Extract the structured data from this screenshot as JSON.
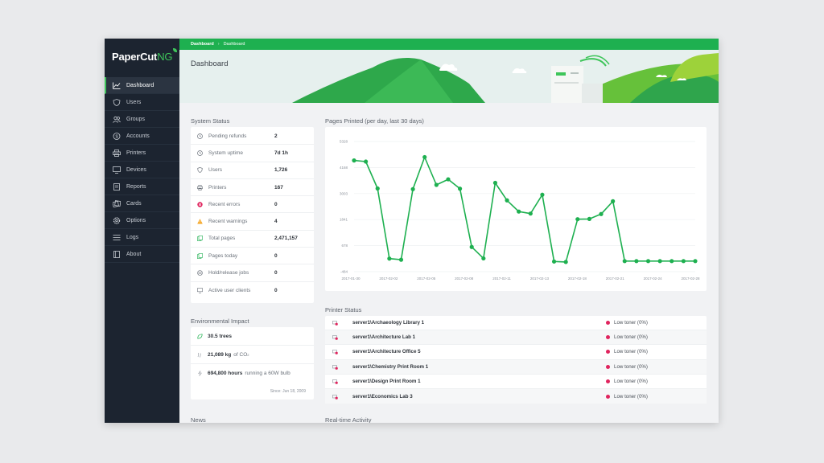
{
  "app": {
    "logo_text": "PaperCut",
    "logo_suffix": "NG"
  },
  "breadcrumb": {
    "first": "Dashboard",
    "second": "Dashboard"
  },
  "header": {
    "title": "Dashboard"
  },
  "sidebar": {
    "items": [
      {
        "label": "Dashboard",
        "icon": "chart-line-icon",
        "active": true
      },
      {
        "label": "Users",
        "icon": "shield-icon"
      },
      {
        "label": "Groups",
        "icon": "users-icon"
      },
      {
        "label": "Accounts",
        "icon": "dollar-icon"
      },
      {
        "label": "Printers",
        "icon": "printer-icon"
      },
      {
        "label": "Devices",
        "icon": "device-icon"
      },
      {
        "label": "Reports",
        "icon": "reports-icon"
      },
      {
        "label": "Cards",
        "icon": "cards-icon"
      },
      {
        "label": "Options",
        "icon": "gear-icon"
      },
      {
        "label": "Logs",
        "icon": "logs-icon"
      },
      {
        "label": "About",
        "icon": "book-icon"
      }
    ]
  },
  "system_status": {
    "title": "System Status",
    "rows": [
      {
        "label": "Pending refunds",
        "value": "2",
        "icon": "clock-icon"
      },
      {
        "label": "System uptime",
        "value": "7d 1h",
        "icon": "clock-icon"
      },
      {
        "label": "Users",
        "value": "1,726",
        "icon": "shield-icon"
      },
      {
        "label": "Printers",
        "value": "167",
        "icon": "printer-icon"
      },
      {
        "label": "Recent errors",
        "value": "0",
        "icon": "error-icon"
      },
      {
        "label": "Recent warnings",
        "value": "4",
        "icon": "warning-icon"
      },
      {
        "label": "Total pages",
        "value": "2,471,157",
        "icon": "pages-icon"
      },
      {
        "label": "Pages today",
        "value": "0",
        "icon": "pages-icon"
      },
      {
        "label": "Hold/release jobs",
        "value": "0",
        "icon": "hold-icon"
      },
      {
        "label": "Active user clients",
        "value": "0",
        "icon": "client-icon"
      }
    ]
  },
  "environment": {
    "title": "Environmental Impact",
    "trees": "30.5 trees",
    "co2_value": "21,089 kg",
    "co2_unit": "of CO",
    "co2_sub": "2",
    "hours_value": "694,800 hours",
    "hours_text": "running a 60W bulb",
    "since": "Since: Jun 18, 2009"
  },
  "news": {
    "title": "News"
  },
  "realtime": {
    "title": "Real-time Activity"
  },
  "printer_status": {
    "title": "Printer Status",
    "rows": [
      {
        "name": "server1\\Archaeology Library 1",
        "status": "Low toner (0%)"
      },
      {
        "name": "server1\\Architecture Lab 1",
        "status": "Low toner (0%)"
      },
      {
        "name": "server1\\Architecture Office 5",
        "status": "Low toner (0%)"
      },
      {
        "name": "server1\\Chemistry Print Room 1",
        "status": "Low toner (0%)"
      },
      {
        "name": "server1\\Design Print Room 1",
        "status": "Low toner (0%)"
      },
      {
        "name": "server1\\Economics Lab 3",
        "status": "Low toner (0%)"
      }
    ]
  },
  "colors": {
    "accent": "#1eb050",
    "sidebar": "#1c2430",
    "error": "#e0245e",
    "warning": "#f5a623"
  },
  "chart_data": {
    "type": "line",
    "title": "Pages Printed (per day, last 30 days)",
    "yticks": [
      "5328",
      "4168",
      "3003",
      "1841",
      "678",
      "-484"
    ],
    "ylim": [
      -484,
      5328
    ],
    "xticks": [
      "2017-01-30",
      "2017-02-02",
      "2017-02-05",
      "2017-02-08",
      "2017-02-11",
      "2017-02-13",
      "2017-02-18",
      "2017-02-21",
      "2017-02-24",
      "2017-02-28"
    ],
    "series": [
      {
        "values": [
          4480,
          4430,
          3230,
          100,
          50,
          3200,
          4630,
          3390,
          3640,
          3220,
          620,
          110,
          3480,
          2700,
          2200,
          2110,
          2950,
          -30,
          -50,
          1860,
          1870,
          2090,
          2660,
          -10,
          -10,
          -10,
          -10,
          -10,
          -10,
          -10
        ]
      }
    ]
  }
}
